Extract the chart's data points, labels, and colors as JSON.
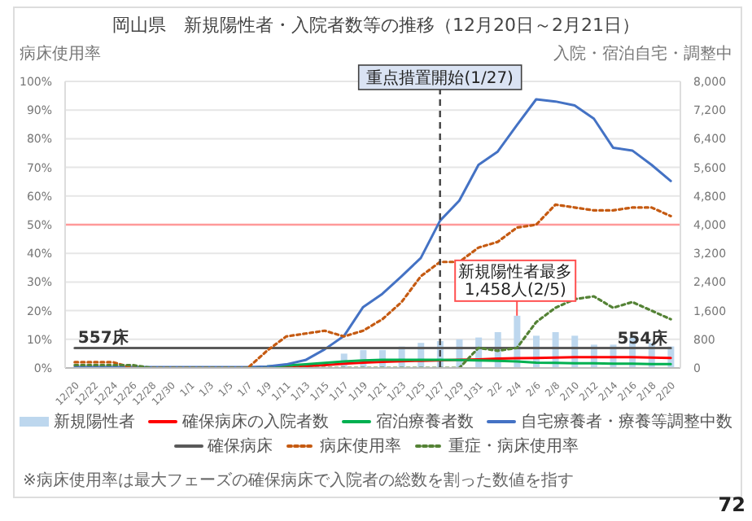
{
  "chart_data": {
    "type": "line",
    "title": "岡山県　新規陽性者・入院者数等の推移（12月20日～2月21日）",
    "ylabel": "病床使用率",
    "y2label": "入院・宿泊自宅・調整中",
    "categories": [
      "12/20",
      "12/22",
      "12/24",
      "12/26",
      "12/28",
      "12/30",
      "1/1",
      "1/3",
      "1/5",
      "1/7",
      "1/9",
      "1/11",
      "1/13",
      "1/15",
      "1/17",
      "1/19",
      "1/21",
      "1/23",
      "1/25",
      "1/27",
      "1/29",
      "1/31",
      "2/2",
      "2/4",
      "2/6",
      "2/8",
      "2/10",
      "2/12",
      "2/14",
      "2/16",
      "2/18",
      "2/20"
    ],
    "series": [
      {
        "name": "新規陽性者",
        "type": "bar",
        "axis": "y2",
        "color": "#bdd7ee",
        "values": [
          null,
          null,
          null,
          null,
          null,
          null,
          null,
          null,
          null,
          null,
          null,
          null,
          null,
          null,
          400,
          500,
          500,
          600,
          700,
          750,
          800,
          850,
          1000,
          1458,
          900,
          1000,
          900,
          650,
          650,
          850,
          700,
          600
        ]
      },
      {
        "name": "確保病床の入院者数",
        "axis": "y2",
        "color": "#ff0000",
        "line_style": "solid",
        "values": [
          null,
          null,
          null,
          null,
          null,
          null,
          null,
          null,
          null,
          null,
          30,
          40,
          50,
          80,
          120,
          150,
          170,
          190,
          200,
          null,
          230,
          240,
          260,
          270,
          280,
          290,
          300,
          300,
          300,
          300,
          290,
          280
        ]
      },
      {
        "name": "宿泊療養者数",
        "axis": "y2",
        "color": "#00b050",
        "line_style": "solid",
        "values": [
          null,
          null,
          null,
          null,
          null,
          null,
          null,
          null,
          null,
          null,
          40,
          70,
          100,
          140,
          180,
          210,
          230,
          230,
          230,
          230,
          220,
          210,
          200,
          180,
          150,
          140,
          130,
          130,
          120,
          120,
          110,
          110
        ]
      },
      {
        "name": "自宅療養者・療養等調整中数",
        "axis": "y2",
        "color": "#4472c4",
        "line_style": "solid",
        "values": [
          20,
          20,
          20,
          20,
          20,
          20,
          20,
          20,
          20,
          20,
          40,
          100,
          220,
          520,
          890,
          1700,
          2070,
          2560,
          3070,
          4110,
          4670,
          5670,
          6040,
          6780,
          7500,
          7440,
          7330,
          6960,
          6150,
          6070,
          5670,
          5220
        ]
      },
      {
        "name": "確保病床",
        "axis": "y2",
        "color": "#595959",
        "line_style": "solid",
        "values": [
          557,
          557,
          557,
          557,
          557,
          557,
          557,
          557,
          557,
          557,
          557,
          557,
          557,
          557,
          557,
          557,
          554,
          554,
          554,
          554,
          554,
          554,
          554,
          554,
          554,
          554,
          554,
          554,
          554,
          554,
          554,
          554
        ]
      },
      {
        "name": "病床使用率",
        "axis": "y",
        "color": "#c55a11",
        "line_style": "dotted",
        "values": [
          2,
          2,
          2,
          0,
          0,
          0,
          0,
          0,
          0,
          0,
          6,
          11,
          12,
          13,
          11,
          13,
          17,
          23,
          32,
          37,
          37,
          42,
          44,
          49,
          50,
          57,
          56,
          55,
          55,
          56,
          56,
          53
        ]
      },
      {
        "name": "重症・病床使用率",
        "axis": "y",
        "color": "#548235",
        "line_style": "dotted",
        "values": [
          1,
          1,
          1,
          1,
          0,
          0,
          0,
          0,
          0,
          0,
          0,
          0,
          0,
          0,
          0,
          0,
          0,
          0,
          0,
          0,
          0,
          7,
          6,
          7,
          16,
          21,
          24,
          25,
          21,
          23,
          20,
          17
        ]
      }
    ],
    "ylim": [
      0,
      100
    ],
    "yticks": [
      {
        "value": 0,
        "label": "0%"
      },
      {
        "value": 10,
        "label": "10%"
      },
      {
        "value": 20,
        "label": "20%"
      },
      {
        "value": 30,
        "label": "30%"
      },
      {
        "value": 40,
        "label": "40%"
      },
      {
        "value": 50,
        "label": "50%"
      },
      {
        "value": 60,
        "label": "60%"
      },
      {
        "value": 70,
        "label": "70%"
      },
      {
        "value": 80,
        "label": "80%"
      },
      {
        "value": 90,
        "label": "90%"
      },
      {
        "value": 100,
        "label": "100%"
      }
    ],
    "y2lim": [
      0,
      8000
    ],
    "y2ticks": [
      0,
      800,
      {
        "value": 1600,
        "label": "1,600"
      },
      {
        "value": 2400,
        "label": "2,400"
      },
      {
        "value": 3200,
        "label": "3,200"
      },
      {
        "value": 4000,
        "label": "4,000"
      },
      {
        "value": 4800,
        "label": "4,800"
      },
      {
        "value": 5600,
        "label": "5,600"
      },
      {
        "value": 6400,
        "label": "6,400"
      },
      {
        "value": 7200,
        "label": "7,200"
      },
      {
        "value": 8000,
        "label": "8,000"
      }
    ],
    "ref_lines": [
      {
        "axis": "x",
        "value": "1/27",
        "label": "重点措置開始(1/27)",
        "color": "#404040",
        "line_style": "dashed"
      },
      {
        "axis": "y",
        "value": 50,
        "color": "#ff9999",
        "line_style": "solid"
      }
    ],
    "annotations": [
      "新規陽性者最多\n1,458人(2/5)",
      "※病床使用率は最大フェーズの確保病床で入院者の総数を割った数値を指す",
      "72",
      "557床",
      "554床"
    ],
    "grid": "y",
    "legend": "bottom",
    "marker": "none"
  }
}
